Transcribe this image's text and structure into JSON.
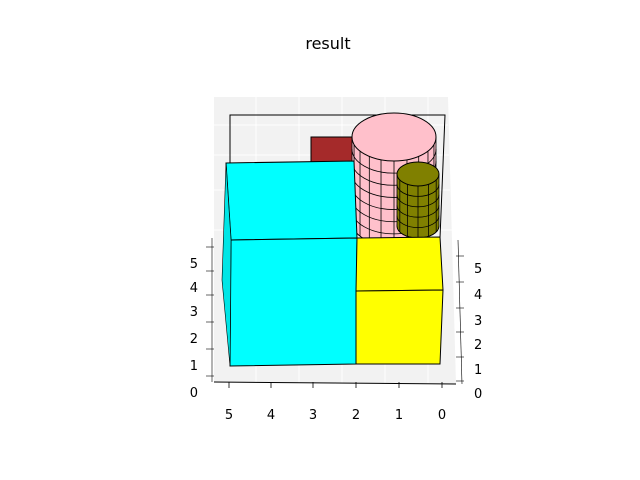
{
  "chart_data": {
    "type": "3d-bar",
    "title": "result",
    "axes": {
      "x_ticks": [
        "5",
        "4",
        "3",
        "2",
        "1",
        "0"
      ],
      "y_ticks_left": [
        "0",
        "1",
        "2",
        "3",
        "4",
        "5"
      ],
      "y_ticks_right": [
        "0",
        "1",
        "2",
        "3",
        "4",
        "5"
      ]
    },
    "objects": [
      {
        "kind": "box",
        "color": "#a52a2a",
        "name": "brown box"
      },
      {
        "kind": "cylinder",
        "color": "#ffc0cb",
        "name": "pink cylinder"
      },
      {
        "kind": "cylinder",
        "color": "#808000",
        "name": "olive cylinder"
      },
      {
        "kind": "box",
        "color": "#00ffff",
        "name": "cyan box (upper)"
      },
      {
        "kind": "box",
        "color": "#00ffff",
        "name": "cyan box (lower)"
      },
      {
        "kind": "box",
        "color": "#ffff00",
        "name": "yellow box (upper)"
      },
      {
        "kind": "box",
        "color": "#ffff00",
        "name": "yellow box (lower)"
      }
    ],
    "grid": true
  }
}
